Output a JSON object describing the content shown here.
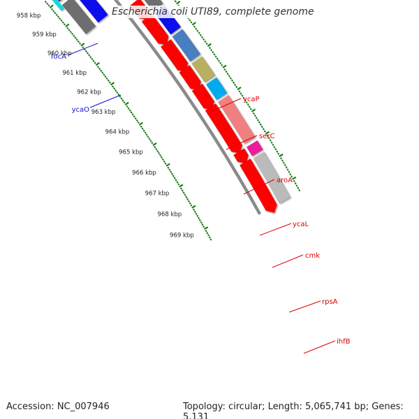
{
  "title": "Escherichia coli UTI89, complete genome",
  "accession": "Accession: NC_007946",
  "summary": "Topology: circular; Length: 5,065,741 bp; Genes: 5,131",
  "scale": {
    "labels": [
      "958 kbp",
      "959 kbp",
      "960 kbp",
      "961 kbp",
      "962 kbp",
      "963 kbp",
      "964 kbp",
      "965 kbp",
      "966 kbp",
      "967 kbp",
      "968 kbp",
      "969 kbp"
    ],
    "tick_color": "#1a7a1a"
  },
  "genes": {
    "left_strand": [
      {
        "name": "focA",
        "label_color": "#1010cc"
      },
      {
        "name": "ycaO",
        "label_color": "#1010cc"
      }
    ],
    "right_strand": [
      {
        "name": "ycaP",
        "label_color": "#dd0000"
      },
      {
        "name": "serC",
        "label_color": "#dd0000"
      },
      {
        "name": "aroA",
        "label_color": "#dd0000"
      },
      {
        "name": "ycaL",
        "label_color": "#dd0000"
      },
      {
        "name": "cmk",
        "label_color": "#dd0000"
      },
      {
        "name": "rpsA",
        "label_color": "#dd0000"
      },
      {
        "name": "ihfB",
        "label_color": "#dd0000"
      }
    ]
  },
  "colors": {
    "cds": "#ff0000",
    "backbone": "#8a8a8a",
    "navy": "#3b2f86",
    "blue": "#0a0aee",
    "grey": "#6e6e6e",
    "steel": "#4a7ec0",
    "olive": "#b8b060",
    "cyan": "#00aaee",
    "salmon": "#f08080",
    "magenta": "#ee1a9a",
    "light_grey": "#bbbbbb"
  }
}
